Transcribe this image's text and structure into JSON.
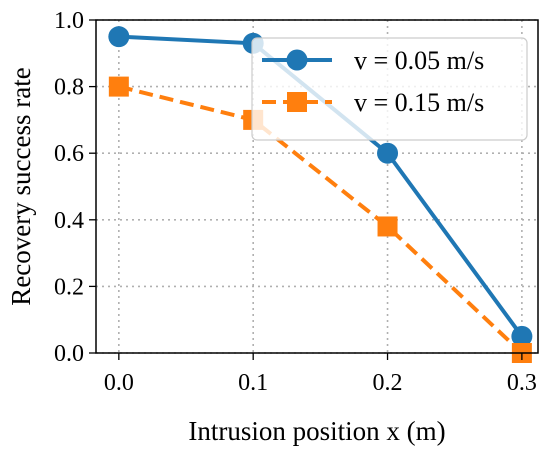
{
  "chart_data": {
    "type": "line",
    "xlabel": "Intrusion position x (m)",
    "ylabel": "Recovery success rate",
    "xlim": [
      -0.017,
      0.312
    ],
    "ylim": [
      0.0,
      1.0
    ],
    "x_ticks": [
      "0.0",
      "0.1",
      "0.2",
      "0.3"
    ],
    "y_ticks": [
      "0.0",
      "0.2",
      "0.4",
      "0.6",
      "0.8",
      "1.0"
    ],
    "grid": true,
    "legend_position": "top-right",
    "series": [
      {
        "name": "v = 0.05 m/s",
        "color": "#1f77b4",
        "marker": "circle",
        "linestyle": "solid",
        "x": [
          0.0,
          0.1,
          0.2,
          0.3
        ],
        "y": [
          0.95,
          0.93,
          0.6,
          0.05
        ]
      },
      {
        "name": "v = 0.15 m/s",
        "color": "#ff7f0e",
        "marker": "square",
        "linestyle": "dashed",
        "x": [
          0.0,
          0.1,
          0.2,
          0.3
        ],
        "y": [
          0.8,
          0.7,
          0.38,
          0.0
        ]
      }
    ]
  }
}
